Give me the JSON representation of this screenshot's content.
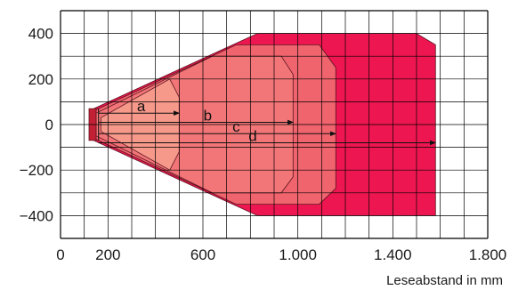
{
  "chart_data": {
    "type": "area",
    "title": "",
    "xlabel": "Leseabstand in mm",
    "ylabel": "",
    "xlim": [
      0,
      1800
    ],
    "ylim": [
      -500,
      500
    ],
    "x_grid_step": 100,
    "y_grid_step": 100,
    "grid": true,
    "x_ticks": [
      {
        "value": 0,
        "label": "0"
      },
      {
        "value": 200,
        "label": "200"
      },
      {
        "value": 600,
        "label": "600"
      },
      {
        "value": 1000,
        "label": "1.000"
      },
      {
        "value": 1400,
        "label": "1.400"
      },
      {
        "value": 1800,
        "label": "1.800"
      }
    ],
    "y_ticks": [
      {
        "value": 400,
        "label": "400"
      },
      {
        "value": 200,
        "label": "200"
      },
      {
        "value": 0,
        "label": "0"
      },
      {
        "value": -200,
        "label": "−200"
      },
      {
        "value": -400,
        "label": "−400"
      }
    ],
    "zones": [
      {
        "label": "d",
        "color": "#ee1650",
        "reach": 1580,
        "label_x": 810,
        "label_y": -80,
        "polygon": [
          [
            140,
            70
          ],
          [
            830,
            400
          ],
          [
            1500,
            400
          ],
          [
            1580,
            350
          ],
          [
            1580,
            -400
          ],
          [
            1500,
            -400
          ],
          [
            830,
            -400
          ],
          [
            140,
            -70
          ]
        ]
      },
      {
        "label": "c",
        "color": "#f0646e",
        "reach": 1160,
        "label_x": 740,
        "label_y": -40,
        "polygon": [
          [
            140,
            60
          ],
          [
            740,
            350
          ],
          [
            1090,
            350
          ],
          [
            1160,
            250
          ],
          [
            1160,
            -280
          ],
          [
            1090,
            -350
          ],
          [
            740,
            -350
          ],
          [
            140,
            -60
          ]
        ]
      },
      {
        "label": "b",
        "color": "#f27678",
        "reach": 980,
        "label_x": 620,
        "label_y": 10,
        "polygon": [
          [
            150,
            50
          ],
          [
            640,
            300
          ],
          [
            930,
            300
          ],
          [
            980,
            220
          ],
          [
            980,
            -230
          ],
          [
            930,
            -300
          ],
          [
            640,
            -300
          ],
          [
            150,
            -50
          ]
        ]
      },
      {
        "label": "a",
        "color": "#f6988a",
        "reach": 500,
        "label_x": 340,
        "label_y": 50,
        "polygon": [
          [
            170,
            30
          ],
          [
            460,
            200
          ],
          [
            500,
            120
          ],
          [
            500,
            -120
          ],
          [
            460,
            -200
          ],
          [
            170,
            -30
          ]
        ]
      }
    ],
    "reader_marker": {
      "color": "#c42035",
      "polygon": [
        [
          120,
          70
        ],
        [
          150,
          70
        ],
        [
          150,
          -70
        ],
        [
          120,
          -70
        ]
      ]
    }
  }
}
